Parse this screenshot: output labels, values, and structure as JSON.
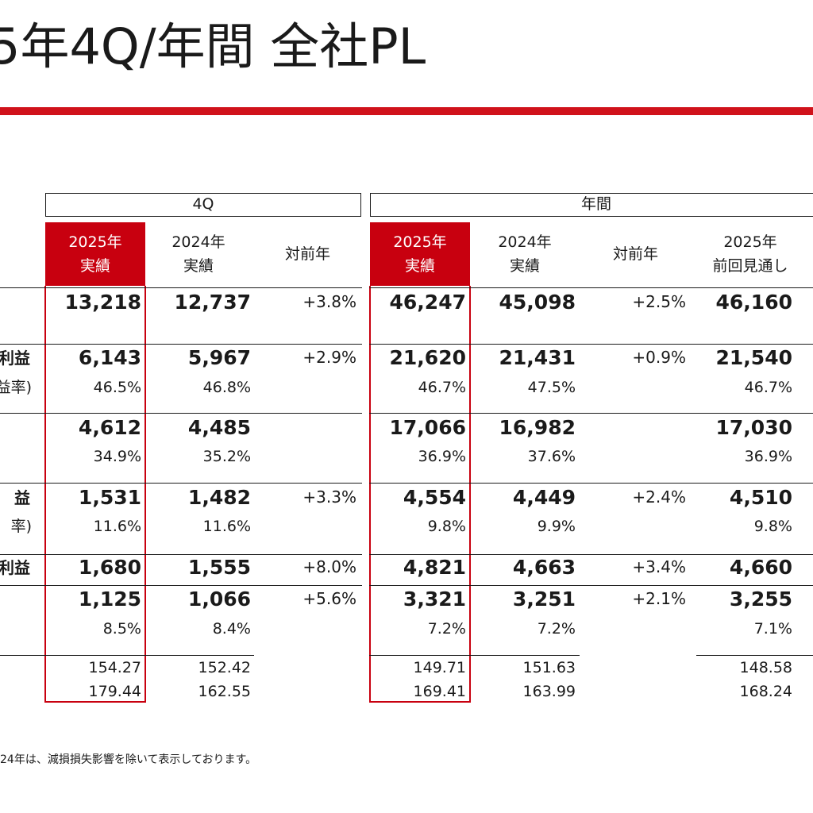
{
  "title": "5年4Q/年間 全社PL",
  "groups": {
    "quarter": "4Q",
    "annual": "年間"
  },
  "columns": [
    {
      "id": "q25",
      "label": "2025年\n実績",
      "highlight": true
    },
    {
      "id": "q24",
      "label": "2024年\n実績",
      "highlight": false
    },
    {
      "id": "qyoy",
      "label": "対前年",
      "highlight": false
    },
    {
      "id": "a25",
      "label": "2025年\n実績",
      "highlight": true
    },
    {
      "id": "a24",
      "label": "2024年\n実績",
      "highlight": false
    },
    {
      "id": "ayoy",
      "label": "対前年",
      "highlight": false
    },
    {
      "id": "fc",
      "label": "2025年\n前回見通し",
      "highlight": false
    }
  ],
  "rows": [
    {
      "label": "",
      "sublabel": "",
      "main": [
        "13,218",
        "12,737",
        "",
        "46,247",
        "45,098",
        "",
        "46,160"
      ],
      "yoy": [
        "+3.8%",
        "+2.5%"
      ],
      "sub": [
        "",
        "",
        "",
        "",
        ""
      ]
    },
    {
      "label": "利益",
      "sublabel": "益率)",
      "main": [
        "6,143",
        "5,967",
        "",
        "21,620",
        "21,431",
        "",
        "21,540"
      ],
      "yoy": [
        "+2.9%",
        "+0.9%"
      ],
      "sub": [
        "46.5%",
        "46.8%",
        "46.7%",
        "47.5%",
        "46.7%"
      ]
    },
    {
      "label": "",
      "sublabel": "",
      "main": [
        "4,612",
        "4,485",
        "",
        "17,066",
        "16,982",
        "",
        "17,030"
      ],
      "yoy": [
        "",
        ""
      ],
      "sub": [
        "34.9%",
        "35.2%",
        "36.9%",
        "37.6%",
        "36.9%"
      ]
    },
    {
      "label": "益",
      "sublabel": "率)",
      "main": [
        "1,531",
        "1,482",
        "",
        "4,554",
        "4,449",
        "",
        "4,510"
      ],
      "yoy": [
        "+3.3%",
        "+2.4%"
      ],
      "sub": [
        "11.6%",
        "11.6%",
        "9.8%",
        "9.9%",
        "9.8%"
      ]
    },
    {
      "label": "利益",
      "sublabel": "",
      "main": [
        "1,680",
        "1,555",
        "",
        "4,821",
        "4,663",
        "",
        "4,660"
      ],
      "yoy": [
        "+8.0%",
        "+3.4%"
      ],
      "sub": [
        "",
        "",
        "",
        "",
        ""
      ]
    },
    {
      "label": "",
      "sublabel": "",
      "main": [
        "1,125",
        "1,066",
        "",
        "3,321",
        "3,251",
        "",
        "3,255"
      ],
      "yoy": [
        "+5.6%",
        "+2.1%"
      ],
      "sub": [
        "8.5%",
        "8.4%",
        "7.2%",
        "7.2%",
        "7.1%"
      ]
    }
  ],
  "fx": [
    [
      "154.27",
      "152.42",
      "149.71",
      "151.63",
      "148.58"
    ],
    [
      "179.44",
      "162.55",
      "169.41",
      "163.99",
      "168.24"
    ]
  ],
  "footnote": "24年は、減損損失影響を除いて表示しております。",
  "colors": {
    "accent": "#c8000f",
    "text": "#1a1a1a"
  }
}
